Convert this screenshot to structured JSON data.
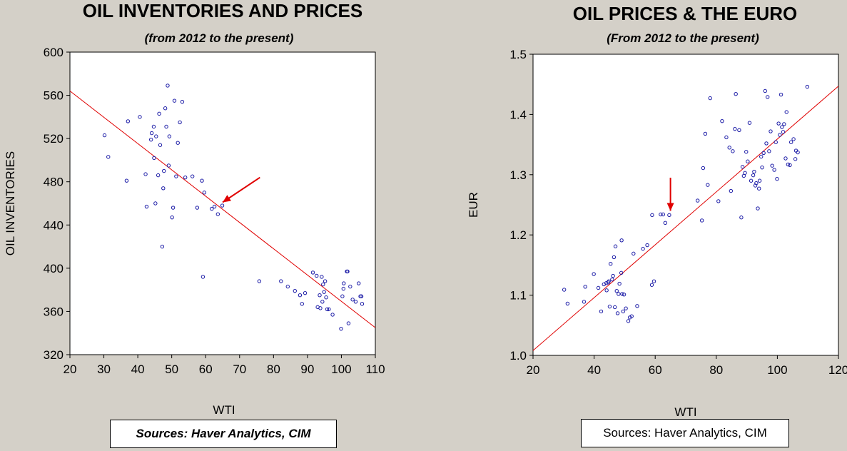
{
  "chart_data": [
    {
      "type": "scatter",
      "title": "OIL INVENTORIES AND PRICES",
      "subtitle": "(from 2012 to the present)",
      "xlabel": "WTI",
      "ylabel": "OIL INVENTORIES",
      "xlim": [
        20,
        110
      ],
      "ylim": [
        320,
        600
      ],
      "xticks": [
        20,
        30,
        40,
        50,
        60,
        70,
        80,
        90,
        100,
        110
      ],
      "yticks": [
        320,
        360,
        400,
        440,
        480,
        520,
        560,
        600
      ],
      "point_color": "#1a1aa6",
      "line_color": "#e00000",
      "regression_line": [
        [
          20,
          564
        ],
        [
          110,
          345
        ]
      ],
      "arrow": {
        "from": [
          76,
          484
        ],
        "to": [
          65,
          461
        ]
      },
      "source": "Sources:  Haver Analytics, CIM",
      "points": [
        [
          30.2,
          523
        ],
        [
          31.3,
          503
        ],
        [
          37.1,
          536
        ],
        [
          36.7,
          481
        ],
        [
          40.6,
          540
        ],
        [
          42.3,
          487
        ],
        [
          42.6,
          457
        ],
        [
          43.9,
          519
        ],
        [
          44.1,
          525
        ],
        [
          44.7,
          531
        ],
        [
          44.8,
          502
        ],
        [
          45.2,
          460
        ],
        [
          45.4,
          522
        ],
        [
          46.0,
          486
        ],
        [
          46.3,
          543
        ],
        [
          46.6,
          514
        ],
        [
          47.2,
          420
        ],
        [
          47.5,
          474
        ],
        [
          47.7,
          490
        ],
        [
          48.1,
          548
        ],
        [
          48.4,
          531
        ],
        [
          48.8,
          569
        ],
        [
          49.1,
          495
        ],
        [
          49.3,
          522
        ],
        [
          50.1,
          447
        ],
        [
          50.4,
          456
        ],
        [
          50.8,
          555
        ],
        [
          51.3,
          485
        ],
        [
          51.8,
          516
        ],
        [
          52.4,
          535
        ],
        [
          53.1,
          554
        ],
        [
          54.0,
          484
        ],
        [
          56.1,
          485
        ],
        [
          57.5,
          456
        ],
        [
          58.9,
          481
        ],
        [
          59.2,
          392
        ],
        [
          59.6,
          470
        ],
        [
          61.8,
          455
        ],
        [
          62.6,
          457
        ],
        [
          63.6,
          450
        ],
        [
          64.9,
          458
        ],
        [
          75.8,
          388
        ],
        [
          82.2,
          388
        ],
        [
          84.2,
          383
        ],
        [
          86.3,
          379
        ],
        [
          87.8,
          375
        ],
        [
          89.3,
          377
        ],
        [
          88.4,
          367
        ],
        [
          91.6,
          396
        ],
        [
          92.7,
          393
        ],
        [
          93.0,
          364
        ],
        [
          93.6,
          375
        ],
        [
          93.8,
          363
        ],
        [
          94.2,
          392
        ],
        [
          94.4,
          369
        ],
        [
          94.6,
          385
        ],
        [
          94.9,
          378
        ],
        [
          95.2,
          388
        ],
        [
          95.5,
          373
        ],
        [
          95.8,
          362
        ],
        [
          96.3,
          362
        ],
        [
          97.4,
          357
        ],
        [
          99.9,
          344
        ],
        [
          100.3,
          374
        ],
        [
          100.6,
          381
        ],
        [
          100.7,
          386
        ],
        [
          101.6,
          397
        ],
        [
          101.8,
          397
        ],
        [
          102.1,
          349
        ],
        [
          102.6,
          383
        ],
        [
          103.3,
          371
        ],
        [
          104.2,
          369
        ],
        [
          105.1,
          386
        ],
        [
          105.6,
          374
        ],
        [
          105.9,
          374
        ],
        [
          106.1,
          367
        ]
      ]
    },
    {
      "type": "scatter",
      "title": "OIL PRICES & THE EURO",
      "subtitle": "(From 2012 to the present)",
      "xlabel": "WTI",
      "ylabel": "EUR",
      "xlim": [
        20,
        120
      ],
      "ylim": [
        1.0,
        1.5
      ],
      "xticks": [
        20,
        40,
        60,
        80,
        100,
        120
      ],
      "yticks": [
        1.0,
        1.1,
        1.2,
        1.3,
        1.4,
        1.5
      ],
      "point_color": "#1a1aa6",
      "line_color": "#e00000",
      "regression_line": [
        [
          20,
          1.008
        ],
        [
          120,
          1.447
        ]
      ],
      "arrow": {
        "from": [
          65,
          1.295
        ],
        "to": [
          65,
          1.24
        ]
      },
      "source": "Sources:  Haver Analytics, CIM",
      "points": [
        [
          30.2,
          1.109
        ],
        [
          31.3,
          1.086
        ],
        [
          36.7,
          1.089
        ],
        [
          37.1,
          1.114
        ],
        [
          39.9,
          1.135
        ],
        [
          41.4,
          1.112
        ],
        [
          42.3,
          1.073
        ],
        [
          43.2,
          1.118
        ],
        [
          44.0,
          1.12
        ],
        [
          44.1,
          1.108
        ],
        [
          44.6,
          1.121
        ],
        [
          44.8,
          1.123
        ],
        [
          45.1,
          1.081
        ],
        [
          45.4,
          1.152
        ],
        [
          45.9,
          1.126
        ],
        [
          46.2,
          1.132
        ],
        [
          46.5,
          1.163
        ],
        [
          46.8,
          1.08
        ],
        [
          47.0,
          1.181
        ],
        [
          47.4,
          1.107
        ],
        [
          47.7,
          1.07
        ],
        [
          48.0,
          1.102
        ],
        [
          48.3,
          1.119
        ],
        [
          48.9,
          1.137
        ],
        [
          49.0,
          1.191
        ],
        [
          49.2,
          1.102
        ],
        [
          49.5,
          1.073
        ],
        [
          49.8,
          1.101
        ],
        [
          50.4,
          1.078
        ],
        [
          51.2,
          1.057
        ],
        [
          51.7,
          1.063
        ],
        [
          52.3,
          1.065
        ],
        [
          54.1,
          1.082
        ],
        [
          52.9,
          1.169
        ],
        [
          56.0,
          1.177
        ],
        [
          57.4,
          1.183
        ],
        [
          58.9,
          1.117
        ],
        [
          59.0,
          1.233
        ],
        [
          59.6,
          1.123
        ],
        [
          61.8,
          1.234
        ],
        [
          62.6,
          1.234
        ],
        [
          63.3,
          1.22
        ],
        [
          64.6,
          1.233
        ],
        [
          73.9,
          1.257
        ],
        [
          75.3,
          1.224
        ],
        [
          75.7,
          1.311
        ],
        [
          76.4,
          1.368
        ],
        [
          77.2,
          1.283
        ],
        [
          78.0,
          1.427
        ],
        [
          80.7,
          1.256
        ],
        [
          81.9,
          1.389
        ],
        [
          83.3,
          1.362
        ],
        [
          84.3,
          1.345
        ],
        [
          84.8,
          1.273
        ],
        [
          85.4,
          1.339
        ],
        [
          86.1,
          1.376
        ],
        [
          86.4,
          1.434
        ],
        [
          87.5,
          1.374
        ],
        [
          88.2,
          1.229
        ],
        [
          88.6,
          1.313
        ],
        [
          89.0,
          1.298
        ],
        [
          89.4,
          1.303
        ],
        [
          89.8,
          1.338
        ],
        [
          90.3,
          1.322
        ],
        [
          90.9,
          1.386
        ],
        [
          91.4,
          1.29
        ],
        [
          92.1,
          1.299
        ],
        [
          92.4,
          1.305
        ],
        [
          92.8,
          1.282
        ],
        [
          93.1,
          1.286
        ],
        [
          93.6,
          1.244
        ],
        [
          94.0,
          1.277
        ],
        [
          94.2,
          1.29
        ],
        [
          94.7,
          1.33
        ],
        [
          95.0,
          1.312
        ],
        [
          95.5,
          1.336
        ],
        [
          96.0,
          1.439
        ],
        [
          96.4,
          1.352
        ],
        [
          96.8,
          1.429
        ],
        [
          97.3,
          1.339
        ],
        [
          97.8,
          1.372
        ],
        [
          98.3,
          1.315
        ],
        [
          99.0,
          1.308
        ],
        [
          99.5,
          1.354
        ],
        [
          99.9,
          1.293
        ],
        [
          100.4,
          1.385
        ],
        [
          100.8,
          1.366
        ],
        [
          101.2,
          1.433
        ],
        [
          101.5,
          1.379
        ],
        [
          101.9,
          1.371
        ],
        [
          102.2,
          1.384
        ],
        [
          102.7,
          1.327
        ],
        [
          103.0,
          1.404
        ],
        [
          103.5,
          1.317
        ],
        [
          104.1,
          1.316
        ],
        [
          104.5,
          1.354
        ],
        [
          105.3,
          1.359
        ],
        [
          105.9,
          1.326
        ],
        [
          106.1,
          1.34
        ],
        [
          106.7,
          1.337
        ],
        [
          109.8,
          1.446
        ]
      ]
    }
  ]
}
